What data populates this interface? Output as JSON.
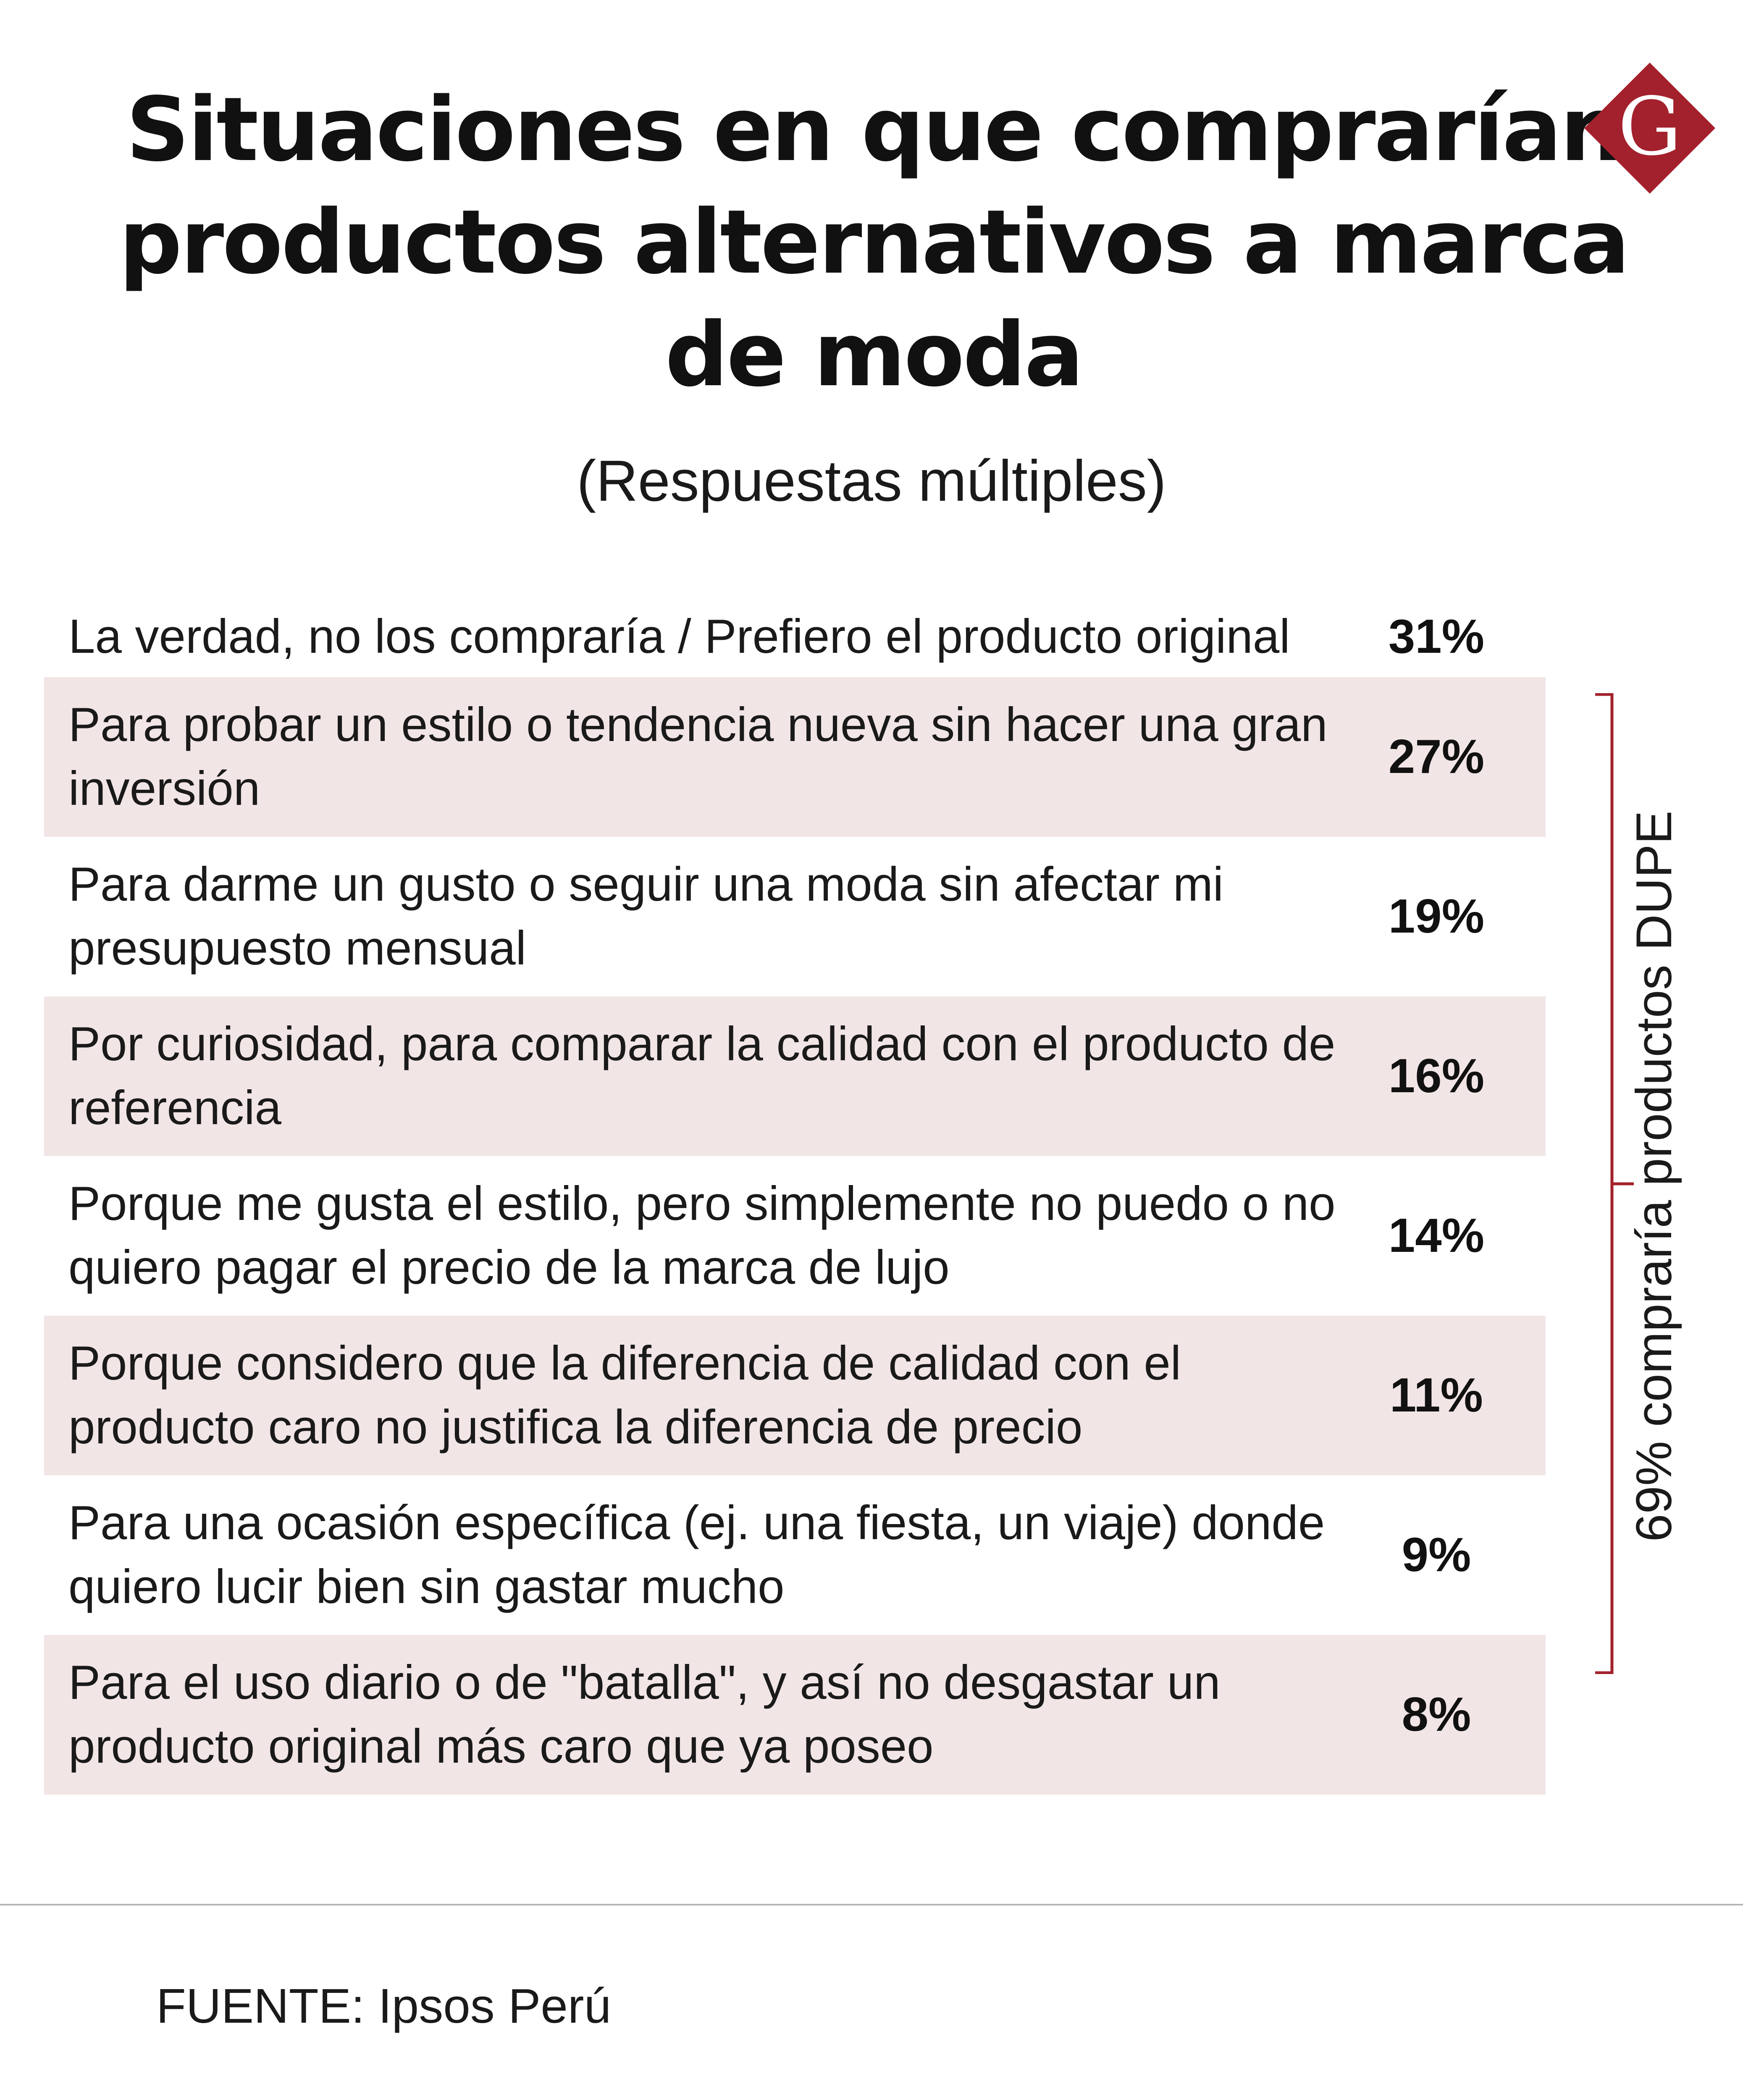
{
  "chart_data": {
    "type": "table",
    "title": "Situaciones en que comprarían productos alternativos a marca de moda",
    "subtitle": "(Respuestas múltiples)",
    "unit": "%",
    "rows": [
      {
        "label": "La verdad, no los compraría / Prefiero el producto original",
        "value": 31,
        "display": "31%"
      },
      {
        "label": "Para probar un estilo o tendencia nueva sin hacer una gran inversión",
        "value": 27,
        "display": "27%"
      },
      {
        "label": "Para darme un gusto o seguir una moda sin afectar mi presupuesto mensual",
        "value": 19,
        "display": "19%"
      },
      {
        "label": "Por curiosidad, para comparar la calidad con el producto de referencia",
        "value": 16,
        "display": "16%"
      },
      {
        "label": "Porque me gusta el estilo, pero simplemente no puedo o no quiero pagar el precio de la marca de lujo",
        "value": 14,
        "display": "14%"
      },
      {
        "label": "Porque considero que la diferencia de calidad con el producto caro no justifica la diferencia de precio",
        "value": 11,
        "display": "11%"
      },
      {
        "label": "Para una ocasión específica (ej. una fiesta, un viaje) donde quiero lucir bien sin gastar mucho",
        "value": 9,
        "display": "9%"
      },
      {
        "label": "Para el uso diario o de \"batalla\", y así no desgastar un producto original más caro que ya poseo",
        "value": 8,
        "display": "8%"
      }
    ],
    "annotation": "69% compraría productos DUPE"
  },
  "source": "FUENTE: Ipsos Perú",
  "logo_letter": "G",
  "colors": {
    "shaded_row": "#f2e5e6",
    "accent": "#a3212c",
    "text": "#111111"
  }
}
